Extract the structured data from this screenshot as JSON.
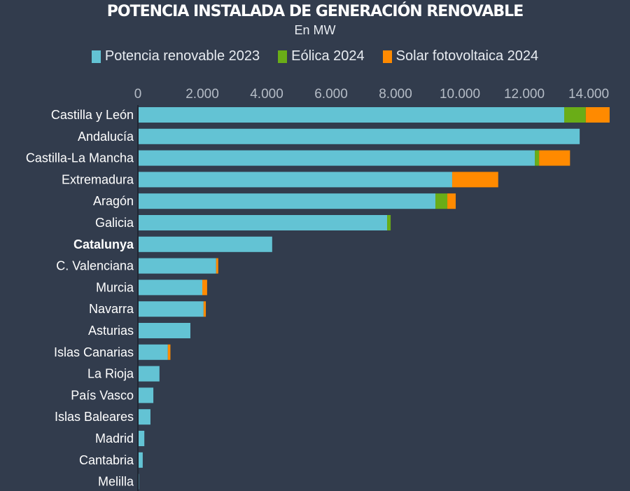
{
  "chart_data": {
    "type": "bar",
    "orientation": "horizontal",
    "stacked": true,
    "title": "POTENCIA INSTALADA DE GENERACIÓN RENOVABLE",
    "subtitle": "En MW",
    "xlabel": "",
    "ylabel": "",
    "xlim": [
      0,
      14000
    ],
    "x_ticks": [
      0,
      2000,
      4000,
      6000,
      8000,
      10000,
      12000,
      14000
    ],
    "x_tick_labels": [
      "0",
      "2.000",
      "4.000",
      "6.000",
      "8.000",
      "10.000",
      "12.000",
      "14.000"
    ],
    "axis_position": "top",
    "grid": false,
    "legend_position": "top",
    "highlighted_category": "Catalunya",
    "categories": [
      "Castilla y León",
      "Andalucía",
      "Castilla-La Mancha",
      "Extremadura",
      "Aragón",
      "Galicia",
      "Catalunya",
      "C. Valenciana",
      "Murcia",
      "Navarra",
      "Asturias",
      "Islas Canarias",
      "La Rioja",
      "País Vasco",
      "Islas Baleares",
      "Madrid",
      "Cantabria",
      "Melilla"
    ],
    "series": [
      {
        "name": "Potencia renovable 2023",
        "color": "#63c3d4",
        "values": [
          13240,
          13720,
          12330,
          9760,
          9240,
          7740,
          4170,
          2430,
          2000,
          2040,
          1630,
          930,
          670,
          480,
          390,
          200,
          150,
          30
        ]
      },
      {
        "name": "Eólica 2024",
        "color": "#6aad17",
        "values": [
          670,
          0,
          130,
          0,
          370,
          110,
          0,
          0,
          0,
          0,
          0,
          0,
          0,
          0,
          0,
          0,
          0,
          0
        ]
      },
      {
        "name": "Solar fotovoltaica 2024",
        "color": "#ff8a00",
        "values": [
          740,
          0,
          960,
          1430,
          260,
          0,
          0,
          65,
          150,
          70,
          0,
          80,
          0,
          0,
          0,
          0,
          0,
          0
        ]
      }
    ]
  },
  "colors": {
    "background": "#323c4d",
    "axis_line": "#1f2733"
  }
}
